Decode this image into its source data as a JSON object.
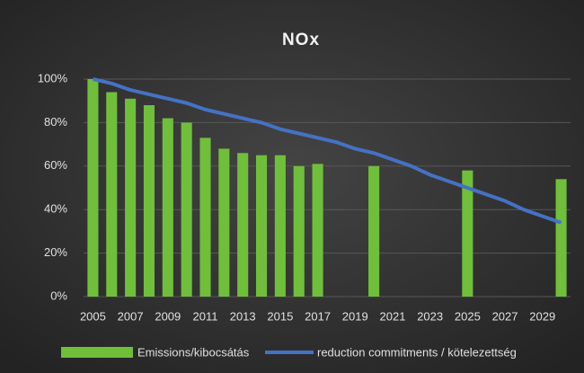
{
  "chart_data": {
    "type": "bar",
    "title": "NOx",
    "categories": [
      "2005",
      null,
      "2007",
      null,
      "2009",
      null,
      "2011",
      null,
      "2013",
      null,
      "2015",
      null,
      "2017",
      null,
      "2019",
      null,
      "2021",
      null,
      "2023",
      null,
      "2025",
      null,
      "2027",
      null,
      "2029",
      null
    ],
    "series": [
      {
        "name": "Emissions/kibocsátás",
        "type": "bar",
        "color": "#6fbf3b",
        "values": [
          100,
          94,
          91,
          88,
          82,
          80,
          73,
          68,
          66,
          65,
          65,
          60,
          61,
          null,
          null,
          60,
          null,
          null,
          null,
          null,
          58,
          null,
          null,
          null,
          null,
          54
        ]
      },
      {
        "name": "reduction commitments / kötelezettség",
        "type": "line",
        "color": "#4472c4",
        "values": [
          100,
          98,
          95,
          93,
          91,
          89,
          86,
          84,
          82,
          80,
          77,
          75,
          73,
          71,
          68,
          66,
          63,
          60,
          56,
          53,
          50,
          47,
          44,
          40,
          37,
          34
        ]
      }
    ],
    "ylim": [
      0,
      100
    ],
    "yticks": [
      {
        "value": 0,
        "label": "0%"
      },
      {
        "value": 20,
        "label": "20%"
      },
      {
        "value": 40,
        "label": "40%"
      },
      {
        "value": 60,
        "label": "60%"
      },
      {
        "value": 80,
        "label": "80%"
      },
      {
        "value": 100,
        "label": "100%"
      }
    ],
    "grid": true,
    "legend": "bottom"
  }
}
